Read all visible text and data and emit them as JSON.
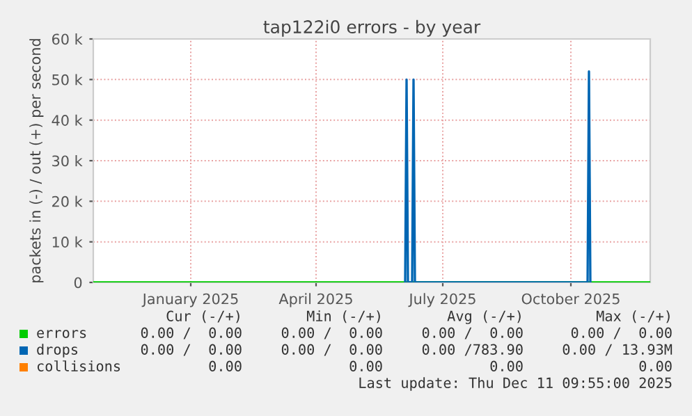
{
  "chart_data": {
    "type": "line",
    "title": "tap122i0 errors - by year",
    "ylabel": "packets in (-) / out (+) per second",
    "xlim": [
      "2024-11-06",
      "2025-12-11"
    ],
    "xticks": [
      {
        "value": "2025-01-15",
        "label": "January 2025"
      },
      {
        "value": "2025-04-15",
        "label": "April 2025"
      },
      {
        "value": "2025-07-15",
        "label": "July 2025"
      },
      {
        "value": "2025-10-15",
        "label": "October 2025"
      }
    ],
    "ylim": [
      0,
      60000
    ],
    "yticks": [
      0,
      {
        "value": 10000,
        "label": "10 k"
      },
      {
        "value": 20000,
        "label": "20 k"
      },
      {
        "value": 30000,
        "label": "30 k"
      },
      {
        "value": 40000,
        "label": "40 k"
      },
      {
        "value": 50000,
        "label": "50 k"
      },
      {
        "value": 60000,
        "label": "60 k"
      }
    ],
    "grid": true,
    "legend": "bottom",
    "series": [
      {
        "name": "errors",
        "color": "#00cc00",
        "x": [
          "2024-11-06",
          "2025-12-11"
        ],
        "values": [
          0,
          0
        ]
      },
      {
        "name": "drops",
        "color": "#0066b3",
        "x": [
          "2025-06-18",
          "2025-06-19",
          "2025-06-20",
          "2025-06-23",
          "2025-06-24",
          "2025-06-25",
          "2025-10-27",
          "2025-10-28",
          "2025-10-29"
        ],
        "values": [
          0,
          50000,
          0,
          0,
          50000,
          0,
          0,
          52000,
          0
        ]
      },
      {
        "name": "collisions",
        "color": "#ff8000"
      }
    ],
    "annotations": [
      "Cur (-/+)",
      "Min (-/+)",
      "Avg (-/+)",
      "Max (-/+)",
      "0.00 /  0.00",
      "0.00 /  0.00",
      "0.00 /  0.00",
      "0.00 /  0.00",
      "0.00 /  0.00",
      "0.00 /  0.00",
      "0.00 /783.90",
      "0.00 / 13.93M",
      "0.00",
      "0.00",
      "0.00",
      "0.00",
      "Last update: Thu Dec 11 09:55:00 2025"
    ]
  }
}
